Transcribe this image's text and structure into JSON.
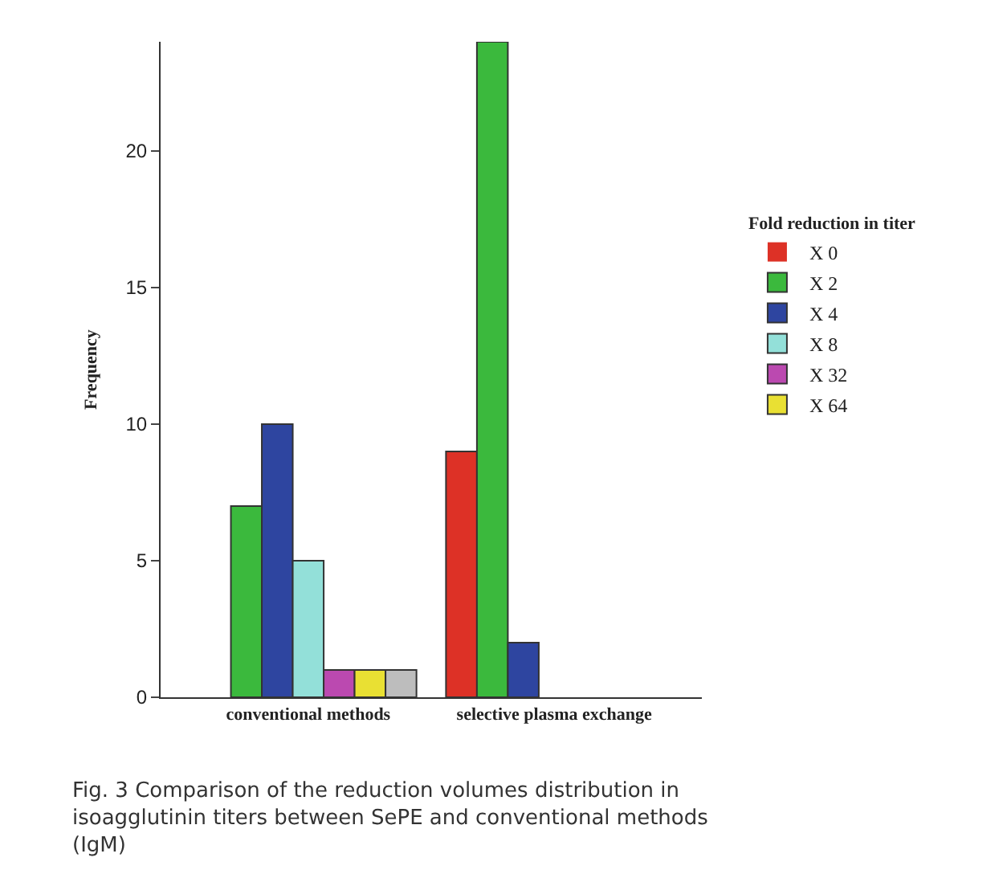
{
  "chart_data": {
    "type": "bar",
    "categories": [
      "conventional methods",
      "selective plasma exchange"
    ],
    "ylabel": "Frequency",
    "legend_title": "Fold reduction in titer",
    "series": [
      {
        "name": "X 0",
        "color": "#dd3126",
        "values": [
          0,
          9
        ]
      },
      {
        "name": "X 2",
        "color": "#3bb93d",
        "values": [
          7,
          24
        ]
      },
      {
        "name": "X 4",
        "color": "#2e45a0",
        "values": [
          10,
          2
        ]
      },
      {
        "name": "X 8",
        "color": "#93e0d9",
        "values": [
          5,
          0
        ]
      },
      {
        "name": "X 32",
        "color": "#bb49b0",
        "values": [
          1,
          0
        ]
      },
      {
        "name": "X 64",
        "color": "#e9e033",
        "values": [
          1,
          0
        ]
      },
      {
        "color": "#bdbdbd",
        "values": [
          1,
          0
        ]
      }
    ],
    "ylim": [
      0,
      24
    ],
    "yticks": [
      0,
      5,
      10,
      15,
      20
    ],
    "legend": "right",
    "annotations": [
      "Fig. 3 Comparison of the reduction volumes distribution in isoagglutinin titers between SePE and conventional methods (IgM)"
    ]
  }
}
